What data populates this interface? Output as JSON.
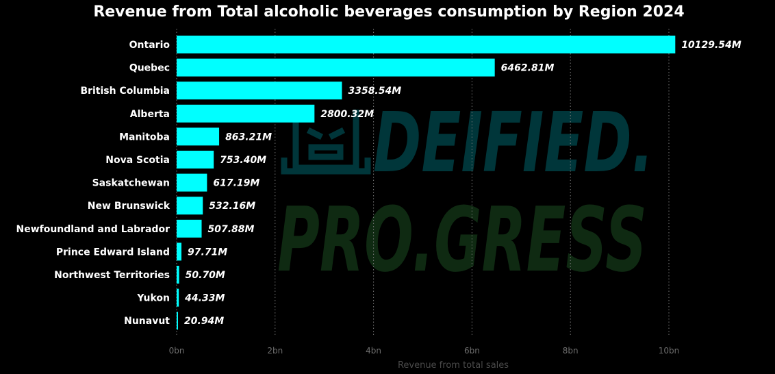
{
  "chart_data": {
    "type": "bar",
    "orientation": "horizontal",
    "title": "Revenue from Total alcoholic beverages consumption by Region 2024",
    "xlabel": "Revenue from total sales",
    "ylabel": "",
    "xlim": [
      0,
      10000000000
    ],
    "x_ticks": [
      {
        "value": 0,
        "label": "0bn"
      },
      {
        "value": 2000000000,
        "label": "2bn"
      },
      {
        "value": 4000000000,
        "label": "4bn"
      },
      {
        "value": 6000000000,
        "label": "6bn"
      },
      {
        "value": 8000000000,
        "label": "8bn"
      },
      {
        "value": 10000000000,
        "label": "10bn"
      }
    ],
    "grid": true,
    "categories": [
      "Ontario",
      "Quebec",
      "British Columbia",
      "Alberta",
      "Manitoba",
      "Nova Scotia",
      "Saskatchewan",
      "New Brunswick",
      "Newfoundland and Labrador",
      "Prince Edward Island",
      "Northwest Territories",
      "Yukon",
      "Nunavut"
    ],
    "values": [
      10129540000,
      6462810000,
      3358540000,
      2800320000,
      863210000,
      753400000,
      617190000,
      532160000,
      507880000,
      97710000,
      50700000,
      44330000,
      20940000
    ],
    "value_labels": [
      "10129.54M",
      "6462.81M",
      "3358.54M",
      "2800.32M",
      "863.21M",
      "753.40M",
      "617.19M",
      "532.16M",
      "507.88M",
      "97.71M",
      "50.70M",
      "44.33M",
      "20.94M"
    ],
    "bar_color": "#00ffff"
  },
  "watermark": {
    "line1": "DEIFIED.",
    "line2": "PRO.GRESS",
    "color1": "#00363a",
    "color2": "#0f2a12"
  }
}
